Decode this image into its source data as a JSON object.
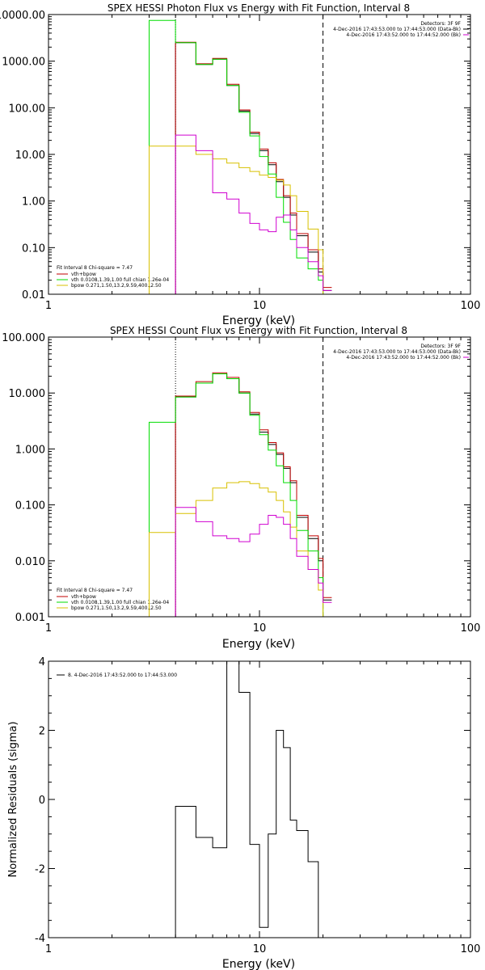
{
  "colors": {
    "background": "#ffffff",
    "axis": "#000000",
    "data": "#000000",
    "total": "#c00000",
    "vth": "#00dd00",
    "bpow": "#d8c000",
    "background_series": "#d000d0"
  },
  "chart_data": [
    {
      "type": "line",
      "title": "SPEX HESSI Photon Flux vs Energy with Fit Function, Interval 8",
      "xlabel": "Energy (keV)",
      "ylabel": "",
      "xscale": "log",
      "yscale": "log",
      "xlim": [
        1,
        100
      ],
      "ylim": [
        0.01,
        10000
      ],
      "xticklabels": [
        "1",
        "10",
        "100"
      ],
      "yticklabels": [
        "0.01",
        "0.10",
        "1.00",
        "10.00",
        "100.00",
        "1000.00",
        "10000.00"
      ],
      "header_lines": [
        "Detectors: 3F 9F",
        "4-Dec-2016 17:43:53.000 to 17:44:53.000 (Data-Bk)",
        "4-Dec-2016 17:43:52.000 to 17:44:52.000 (Bk)"
      ],
      "legend": [
        "Fit Interval 8    Chi-square = 7.47",
        "vth+bpow",
        "vth 0.0108,1.39,1.00  full chian 1.26e-04",
        "bpow 0.271,1.50,13.2,9.59,400.,2.50"
      ],
      "bin_edges": [
        3.0,
        4.0,
        5.0,
        6.0,
        7.0,
        8.0,
        9.0,
        10.0,
        11.0,
        12.0,
        13.0,
        14.0,
        15.0,
        17.0,
        19.0,
        20.0,
        22.0
      ],
      "markers": [
        {
          "x": 4.0,
          "style": "dotted"
        },
        {
          "x": 20.0,
          "style": "dashed"
        }
      ],
      "series": [
        {
          "name": "Data-Bk",
          "color": "#000000",
          "values": [
            null,
            2500,
            850,
            1100,
            300,
            85,
            28,
            12,
            6.0,
            2.6,
            1.2,
            0.5,
            0.18,
            0.08,
            0.03,
            0.012
          ]
        },
        {
          "name": "vth+bpow",
          "color": "#c00000",
          "values": [
            null,
            2550,
            880,
            1150,
            320,
            90,
            30,
            13,
            6.6,
            2.9,
            1.3,
            0.55,
            0.2,
            0.09,
            0.035,
            0.014
          ]
        },
        {
          "name": "vth",
          "color": "#00dd00",
          "values": [
            7500,
            2500,
            850,
            1100,
            300,
            80,
            25,
            9,
            3.8,
            1.2,
            0.35,
            0.15,
            0.06,
            0.035,
            0.02,
            null
          ]
        },
        {
          "name": "bpow",
          "color": "#d8c000",
          "values": [
            15,
            15,
            10,
            8.0,
            6.5,
            5.2,
            4.3,
            3.6,
            3.2,
            2.8,
            2.2,
            1.3,
            0.6,
            0.25,
            0.09,
            null
          ]
        },
        {
          "name": "Bk",
          "color": "#d000d0",
          "values": [
            null,
            26,
            12,
            1.5,
            1.1,
            0.55,
            0.33,
            0.24,
            0.22,
            0.45,
            0.5,
            0.24,
            0.1,
            0.05,
            0.025,
            0.012
          ]
        }
      ]
    },
    {
      "type": "line",
      "title": "SPEX HESSI Count Flux vs Energy with Fit Function, Interval 8",
      "xlabel": "Energy (keV)",
      "ylabel": "",
      "xscale": "log",
      "yscale": "log",
      "xlim": [
        1,
        100
      ],
      "ylim": [
        0.001,
        100
      ],
      "xticklabels": [
        "1",
        "10",
        "100"
      ],
      "yticklabels": [
        "0.001",
        "0.010",
        "0.100",
        "1.000",
        "10.000",
        "100.000"
      ],
      "header_lines": [
        "Detectors: 3F 9F",
        "4-Dec-2016 17:43:53.000 to 17:44:53.000 (Data-Bk)",
        "4-Dec-2016 17:43:52.000 to 17:44:52.000 (Bk)"
      ],
      "legend": [
        "Fit Interval 8    Chi-square = 7.47",
        "vth+bpow",
        "vth 0.0108,1.39,1.00  full chian 1.26e-04",
        "bpow 0.271,1.50,13.2,9.59,400.,2.50"
      ],
      "bin_edges": [
        3.0,
        4.0,
        5.0,
        6.0,
        7.0,
        8.0,
        9.0,
        10.0,
        11.0,
        12.0,
        13.0,
        14.0,
        15.0,
        17.0,
        19.0,
        20.0,
        22.0
      ],
      "markers": [
        {
          "x": 4.0,
          "style": "dotted"
        },
        {
          "x": 20.0,
          "style": "dashed"
        }
      ],
      "series": [
        {
          "name": "Data-Bk",
          "color": "#000000",
          "values": [
            null,
            8.5,
            15,
            22,
            18,
            10,
            4.2,
            2.0,
            1.2,
            0.8,
            0.45,
            0.25,
            0.06,
            0.025,
            0.01,
            0.002
          ]
        },
        {
          "name": "vth+bpow",
          "color": "#c00000",
          "values": [
            null,
            8.8,
            16,
            23,
            19,
            10.5,
            4.5,
            2.2,
            1.3,
            0.85,
            0.48,
            0.27,
            0.065,
            0.028,
            0.011,
            0.0022
          ]
        },
        {
          "name": "vth",
          "color": "#00dd00",
          "values": [
            3.0,
            8.5,
            15,
            22,
            18,
            10,
            4.0,
            1.8,
            0.95,
            0.5,
            0.25,
            0.12,
            0.035,
            0.015,
            0.005,
            null
          ]
        },
        {
          "name": "bpow",
          "color": "#d8c000",
          "values": [
            0.032,
            0.07,
            0.12,
            0.2,
            0.25,
            0.26,
            0.24,
            0.2,
            0.17,
            0.12,
            0.075,
            0.04,
            0.015,
            0.007,
            0.003,
            null
          ]
        },
        {
          "name": "Bk",
          "color": "#d000d0",
          "values": [
            null,
            0.09,
            0.05,
            0.028,
            0.025,
            0.022,
            0.03,
            0.045,
            0.065,
            0.06,
            0.045,
            0.025,
            0.012,
            0.007,
            0.004,
            0.0018
          ]
        }
      ]
    },
    {
      "type": "line",
      "title": "",
      "xlabel": "Energy (keV)",
      "ylabel": "Normalized Residuals (sigma)",
      "xscale": "log",
      "yscale": "linear",
      "xlim": [
        1,
        100
      ],
      "ylim": [
        -4,
        4
      ],
      "xticklabels": [
        "1",
        "10",
        "100"
      ],
      "yticklabels": [
        "-4",
        "-2",
        "0",
        "2",
        "4"
      ],
      "legend": [
        "8.  4-Dec-2016 17:43:52.000 to 17:44:53.000"
      ],
      "bin_edges": [
        4.0,
        5.0,
        6.0,
        7.0,
        8.0,
        9.0,
        10.0,
        11.0,
        12.0,
        13.0,
        14.0,
        15.0,
        17.0,
        19.0,
        20.0
      ],
      "series": [
        {
          "name": "8.  4-Dec-2016 17:43:52.000 to 17:44:53.000",
          "color": "#000000",
          "values": [
            -0.2,
            -1.1,
            -1.4,
            4.0,
            3.1,
            -1.3,
            -3.7,
            -1.0,
            2.0,
            1.5,
            -0.6,
            -0.9,
            -1.8,
            null
          ]
        }
      ]
    }
  ]
}
